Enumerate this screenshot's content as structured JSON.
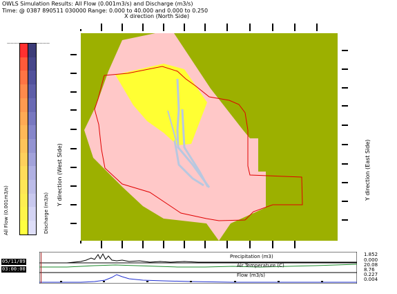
{
  "header": {
    "title": "OWLS Simulation Results: All Flow (0.001m3/s) and Discharge (m3/s)",
    "info": "Time: @ 0387 890511 030000 Range:   0.000 to  40.000 and   0.000 to   0.250"
  },
  "map": {
    "x_title": "X direction (North Side)",
    "y_title_west": "Y direction (West Side)",
    "y_title_east": "Y direction (East Side)",
    "colors": {
      "background": "#9cb000",
      "basin_fill": "#ffc8c8",
      "yellow_zone": "#ffff33",
      "boundary": "#e00000",
      "stream": "#b8c8e0"
    }
  },
  "legend": {
    "all_flow_label": "All Flow (0.001m3/s)",
    "discharge_label": "Discharge (m3/s)",
    "all_flow_colors": [
      "#ff3030",
      "#ff5a3a",
      "#ff7444",
      "#ff8a4c",
      "#ff9a50",
      "#ffaa54",
      "#ffb858",
      "#ffc45a",
      "#ffd05c",
      "#ffdc5a",
      "#ffe656",
      "#ffee50",
      "#fff44a",
      "#ffff40"
    ],
    "discharge_colors": [
      "#3c3c78",
      "#46468a",
      "#52529c",
      "#5e5ea8",
      "#6a6ab4",
      "#7878c0",
      "#8686ca",
      "#9494d2",
      "#a2a2da",
      "#b0b0e2",
      "#bcbce8",
      "#c8c8ee",
      "#d4d4f4",
      "#dedef8"
    ]
  },
  "timeseries": {
    "stamp": [
      "05/11/89",
      "03:00:00"
    ],
    "precipitation": {
      "label": "Precipitation (m3)",
      "max": "1.852",
      "min": "0.000"
    },
    "air_temperature": {
      "label": "Air Temperature (C)",
      "max": "20.08",
      "min": "8.76"
    },
    "flow": {
      "label": "Flow (m3/s)",
      "max": "0.227",
      "min": "0.004"
    }
  }
}
